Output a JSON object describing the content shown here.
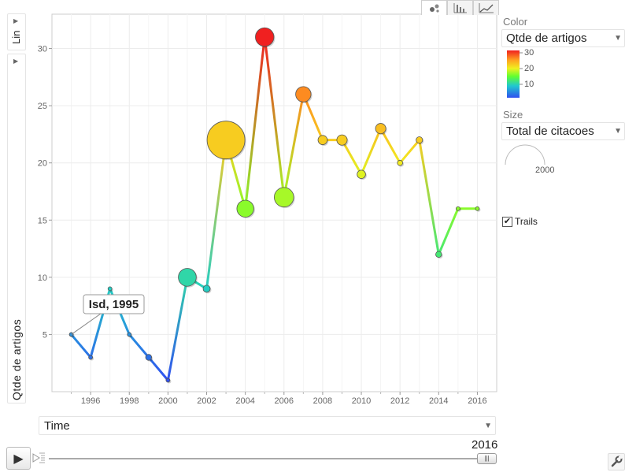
{
  "y_scale": {
    "label": "Lin"
  },
  "y_axis": {
    "label": "Qtde de artigos"
  },
  "x_axis_select": {
    "label": "Time"
  },
  "tabs": [
    {
      "name": "bubbles",
      "icon": "bubble-chart-icon",
      "active": true
    },
    {
      "name": "bars",
      "icon": "bar-chart-icon",
      "active": false
    },
    {
      "name": "lines",
      "icon": "line-chart-icon",
      "active": false
    }
  ],
  "color_panel": {
    "label": "Color",
    "selected": "Qtde de artigos",
    "scale_labels": [
      "30",
      "20",
      "10"
    ]
  },
  "size_panel": {
    "label": "Size",
    "selected": "Total de citacoes",
    "legend_value": "2000"
  },
  "trails": {
    "label": "Trails",
    "checked": true
  },
  "playback": {
    "current_time": "2016",
    "play_icon": "play-icon",
    "speed_icon": "speed-icon"
  },
  "settings_icon": "wrench-icon",
  "tooltip": {
    "text": "Isd, 1995"
  },
  "chart_data": {
    "type": "scatter",
    "x_ticks": [
      "1996",
      "1998",
      "2000",
      "2002",
      "2004",
      "2006",
      "2008",
      "2010",
      "2012",
      "2014",
      "2016"
    ],
    "y_ticks": [
      "5",
      "10",
      "15",
      "20",
      "25",
      "30"
    ],
    "xlim": [
      1994,
      2017
    ],
    "ylim": [
      0,
      33
    ],
    "color_range": [
      1,
      31
    ],
    "trail": [
      {
        "x": 1995,
        "y": 5
      },
      {
        "x": 1996,
        "y": 3
      },
      {
        "x": 1997,
        "y": 9
      },
      {
        "x": 1998,
        "y": 5
      },
      {
        "x": 1999,
        "y": 3
      },
      {
        "x": 2000,
        "y": 1
      },
      {
        "x": 2001,
        "y": 10
      },
      {
        "x": 2002,
        "y": 9
      },
      {
        "x": 2003,
        "y": 22
      },
      {
        "x": 2004,
        "y": 16
      },
      {
        "x": 2005,
        "y": 31
      },
      {
        "x": 2006,
        "y": 17
      },
      {
        "x": 2007,
        "y": 26
      },
      {
        "x": 2008,
        "y": 22
      },
      {
        "x": 2009,
        "y": 22
      },
      {
        "x": 2010,
        "y": 19
      },
      {
        "x": 2011,
        "y": 23
      },
      {
        "x": 2012,
        "y": 20
      },
      {
        "x": 2013,
        "y": 22
      },
      {
        "x": 2014,
        "y": 12
      },
      {
        "x": 2015,
        "y": 16
      },
      {
        "x": 2016,
        "y": 16
      }
    ],
    "bubbles": [
      {
        "x": 1995,
        "y": 5,
        "size": 0
      },
      {
        "x": 1996,
        "y": 3,
        "size": 20
      },
      {
        "x": 1997,
        "y": 9,
        "size": 5
      },
      {
        "x": 1998,
        "y": 5,
        "size": 0
      },
      {
        "x": 1999,
        "y": 3,
        "size": 50
      },
      {
        "x": 2000,
        "y": 1,
        "size": 15
      },
      {
        "x": 2001,
        "y": 10,
        "size": 450
      },
      {
        "x": 2002,
        "y": 9,
        "size": 70
      },
      {
        "x": 2003,
        "y": 22,
        "size": 2000
      },
      {
        "x": 2004,
        "y": 16,
        "size": 400
      },
      {
        "x": 2005,
        "y": 31,
        "size": 480
      },
      {
        "x": 2006,
        "y": 17,
        "size": 530
      },
      {
        "x": 2007,
        "y": 26,
        "size": 330
      },
      {
        "x": 2008,
        "y": 22,
        "size": 120
      },
      {
        "x": 2009,
        "y": 22,
        "size": 150
      },
      {
        "x": 2010,
        "y": 19,
        "size": 100
      },
      {
        "x": 2011,
        "y": 23,
        "size": 150
      },
      {
        "x": 2012,
        "y": 20,
        "size": 40
      },
      {
        "x": 2013,
        "y": 22,
        "size": 60
      },
      {
        "x": 2014,
        "y": 12,
        "size": 50
      },
      {
        "x": 2015,
        "y": 16,
        "size": 5
      },
      {
        "x": 2016,
        "y": 16,
        "size": 2
      }
    ],
    "size_max": 2000,
    "tooltip_point": {
      "x": 1995,
      "y": 5
    }
  }
}
